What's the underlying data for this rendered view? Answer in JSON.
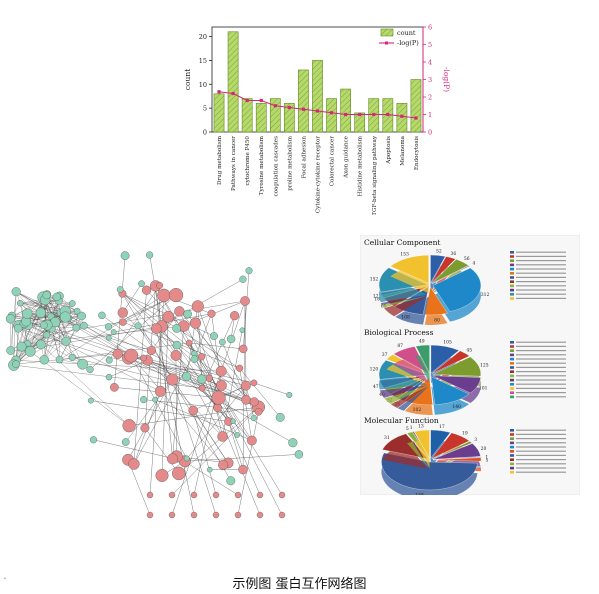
{
  "caption": "示例图  蛋白互作网络图",
  "corner_mark": "ˇ",
  "chart_data": [
    {
      "type": "bar",
      "categories": [
        "Drug metabolism",
        "Pathways in cancer",
        "cytochrome P450",
        "Tyrosine metabolism",
        "coagulation cascades",
        "proline metabolism",
        "Focal adhesion",
        "Cytokine-cytokine receptor",
        "Colorectal cancer",
        "Axon guidance",
        "Histidine metabolism",
        "TGF-beta signaling pathway",
        "Apoptosis",
        "Melanoma",
        "Endocytosis"
      ],
      "series": [
        {
          "name": "count",
          "axis": "left",
          "values": [
            8,
            21,
            7,
            6,
            7,
            6,
            13,
            15,
            7,
            9,
            4,
            7,
            7,
            6,
            11
          ],
          "color": "#b5d96a"
        },
        {
          "name": "-log(P)",
          "axis": "right",
          "values": [
            2.3,
            2.2,
            1.8,
            1.8,
            1.5,
            1.4,
            1.3,
            1.2,
            1.1,
            1.0,
            1.0,
            1.0,
            1.0,
            0.9,
            0.8
          ],
          "color": "#d6267a"
        }
      ],
      "ylabel": "count",
      "y2label": "-log(P)",
      "ylim": [
        0,
        22
      ],
      "y2lim": [
        0,
        6
      ],
      "yticks": [
        "0",
        "5",
        "10",
        "15",
        "20"
      ],
      "y2ticks": [
        "0",
        "1",
        "2",
        "3",
        "4",
        "5",
        "6"
      ],
      "legend_position": "top-right"
    },
    {
      "type": "pie",
      "title": "Cellular Component",
      "values": [
        52,
        36,
        56,
        4,
        312,
        80,
        108,
        60,
        16,
        12,
        152,
        153
      ],
      "labels": [
        "52",
        "36",
        "56",
        "4",
        "312",
        "80",
        "108",
        "60",
        "16",
        "12",
        "152",
        "153"
      ],
      "colors": [
        "#2c5fa8",
        "#c8352a",
        "#7c9c2e",
        "#6a3d8f",
        "#1e88c8",
        "#e8731a",
        "#355b9b",
        "#9b2d2d",
        "#8fb13a",
        "#5e3a86",
        "#2a8fb0",
        "#f2c12e"
      ]
    },
    {
      "type": "pie",
      "title": "Biological Process",
      "values": [
        105,
        45,
        125,
        101,
        140,
        102,
        26,
        32,
        40,
        47,
        120,
        37,
        87,
        49
      ],
      "labels": [
        "105",
        "45",
        "125",
        "101",
        "140",
        "102",
        "26",
        "32",
        "40",
        "47",
        "120",
        "37",
        "87",
        "49"
      ],
      "colors": [
        "#2c5fa8",
        "#c8352a",
        "#7c9c2e",
        "#6a3d8f",
        "#1e88c8",
        "#e8731a",
        "#355b9b",
        "#9b2d2d",
        "#8fb13a",
        "#5e3a86",
        "#2a8fb0",
        "#f2c12e",
        "#d04f8a",
        "#3c9c6a"
      ]
    },
    {
      "type": "pie",
      "title": "Molecular Function",
      "values": [
        17,
        19,
        3,
        20,
        1,
        5,
        138,
        31,
        5,
        1,
        13
      ],
      "labels": [
        "17",
        "19",
        "3",
        "20",
        "1",
        "5",
        "138",
        "31",
        "5",
        "1",
        "13"
      ],
      "colors": [
        "#1e5fa8",
        "#c8352a",
        "#7c9c2e",
        "#6a3d8f",
        "#1e88c8",
        "#e84a1a",
        "#355b9b",
        "#9b2d2d",
        "#8fb13a",
        "#5e3a86",
        "#f2c12e"
      ]
    }
  ],
  "network": {
    "node_color_red": "#e48a8a",
    "node_color_green": "#8ed3b8",
    "edge_color": "#333333"
  }
}
